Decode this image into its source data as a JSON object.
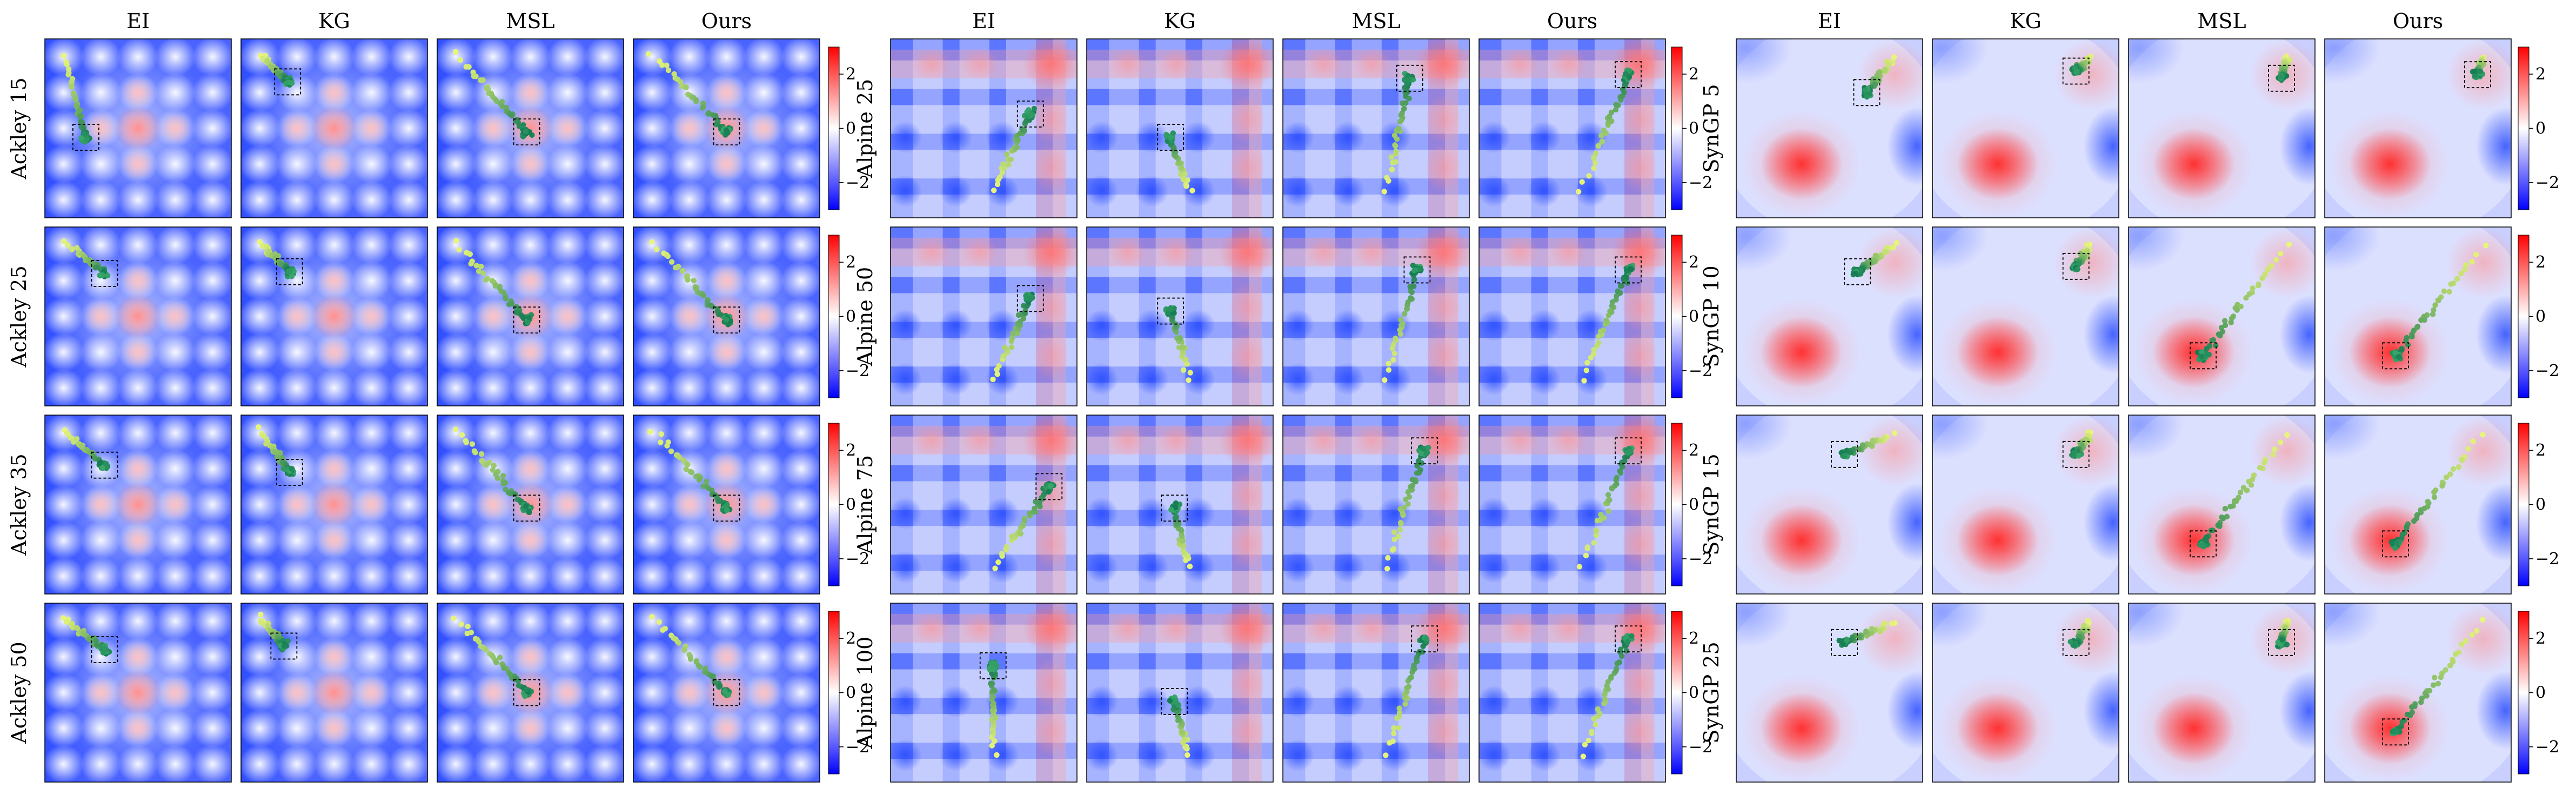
{
  "chart_data": [
    {
      "type": "heatmap",
      "methods": [
        "EI",
        "KG",
        "MSL",
        "Ours"
      ],
      "row_prefix": "Ackley",
      "rows": [
        "Ackley 15",
        "Ackley 25",
        "Ackley 35",
        "Ackley 50"
      ],
      "colorbar_ticks": [
        2,
        0,
        -2
      ],
      "colorbar_range": [
        -3,
        3
      ],
      "surface": "ackley",
      "start_region": "top-left",
      "target": {
        "Ackley 15": {
          "EI": [
            0.22,
            0.55
          ],
          "KG": [
            0.25,
            0.24
          ],
          "MSL": [
            0.48,
            0.52
          ],
          "Ours": [
            0.5,
            0.52
          ]
        },
        "Ackley 25": {
          "EI": [
            0.32,
            0.26
          ],
          "KG": [
            0.26,
            0.25
          ],
          "MSL": [
            0.48,
            0.52
          ],
          "Ours": [
            0.5,
            0.52
          ]
        },
        "Ackley 35": {
          "EI": [
            0.32,
            0.28
          ],
          "KG": [
            0.26,
            0.32
          ],
          "MSL": [
            0.48,
            0.52
          ],
          "Ours": [
            0.5,
            0.52
          ]
        },
        "Ackley 50": {
          "EI": [
            0.32,
            0.26
          ],
          "KG": [
            0.23,
            0.24
          ],
          "MSL": [
            0.48,
            0.5
          ],
          "Ours": [
            0.5,
            0.5
          ]
        }
      }
    },
    {
      "type": "heatmap",
      "methods": [
        "EI",
        "KG",
        "MSL",
        "Ours"
      ],
      "row_prefix": "Alpine",
      "rows": [
        "Alpine 25",
        "Alpine 50",
        "Alpine 75",
        "Alpine 100"
      ],
      "colorbar_ticks": [
        2,
        0,
        -2
      ],
      "colorbar_range": [
        -3,
        3
      ],
      "surface": "alpine",
      "start_region": "bottom-center",
      "target": {
        "Alpine 25": {
          "EI": [
            0.75,
            0.42
          ],
          "KG": [
            0.45,
            0.55
          ],
          "MSL": [
            0.68,
            0.22
          ],
          "Ours": [
            0.8,
            0.2
          ]
        },
        "Alpine 50": {
          "EI": [
            0.75,
            0.4
          ],
          "KG": [
            0.45,
            0.47
          ],
          "MSL": [
            0.72,
            0.24
          ],
          "Ours": [
            0.8,
            0.24
          ]
        },
        "Alpine 75": {
          "EI": [
            0.85,
            0.4
          ],
          "KG": [
            0.47,
            0.52
          ],
          "MSL": [
            0.76,
            0.2
          ],
          "Ours": [
            0.8,
            0.2
          ]
        },
        "Alpine 100": {
          "EI": [
            0.55,
            0.35
          ],
          "KG": [
            0.47,
            0.55
          ],
          "MSL": [
            0.76,
            0.2
          ],
          "Ours": [
            0.8,
            0.2
          ]
        }
      }
    },
    {
      "type": "heatmap",
      "methods": [
        "EI",
        "KG",
        "MSL",
        "Ours"
      ],
      "row_prefix": "SynGP",
      "rows": [
        "SynGP 5",
        "SynGP 10",
        "SynGP 15",
        "SynGP 25"
      ],
      "colorbar_ticks": [
        2,
        0,
        -2
      ],
      "colorbar_range": [
        -3,
        3
      ],
      "surface": "syngp",
      "start_region": "top-right",
      "target": {
        "SynGP 5": {
          "EI": [
            0.7,
            0.3
          ],
          "KG": [
            0.77,
            0.18
          ],
          "MSL": [
            0.82,
            0.22
          ],
          "Ours": [
            0.82,
            0.2
          ]
        },
        "SynGP 10": {
          "EI": [
            0.65,
            0.25
          ],
          "KG": [
            0.77,
            0.22
          ],
          "MSL": [
            0.4,
            0.72
          ],
          "Ours": [
            0.38,
            0.72
          ]
        },
        "SynGP 15": {
          "EI": [
            0.58,
            0.22
          ],
          "KG": [
            0.77,
            0.22
          ],
          "MSL": [
            0.4,
            0.72
          ],
          "Ours": [
            0.38,
            0.72
          ]
        },
        "SynGP 25": {
          "EI": [
            0.58,
            0.22
          ],
          "KG": [
            0.77,
            0.22
          ],
          "MSL": [
            0.82,
            0.22
          ],
          "Ours": [
            0.38,
            0.72
          ]
        }
      }
    }
  ],
  "colors": {
    "low": "#0000ff",
    "mid": "#ffffff",
    "high": "#ff0000",
    "path_early": "#e8f57a",
    "path_late": "#137a52"
  }
}
